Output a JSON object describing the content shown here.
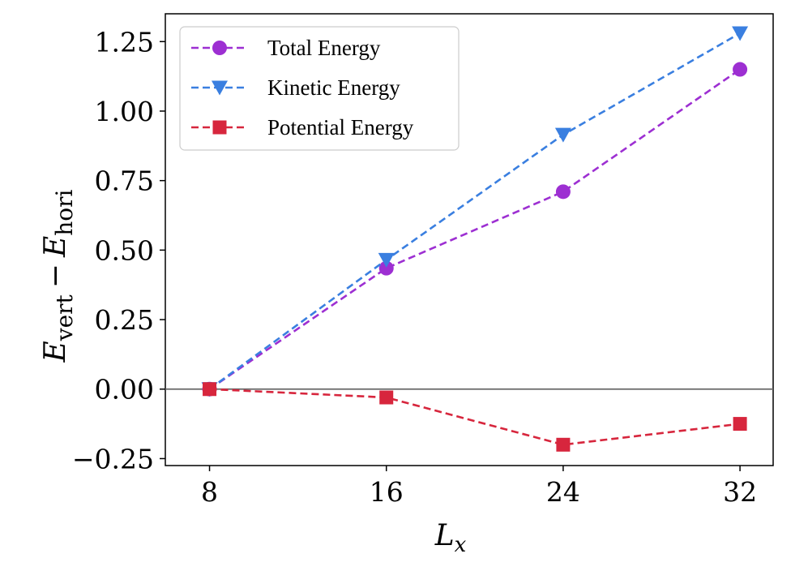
{
  "chart_data": {
    "type": "line",
    "title": "",
    "xlabel": {
      "base": "L",
      "sub": "x"
    },
    "ylabel": {
      "a_base": "E",
      "a_sub": "vert",
      "minus": "−",
      "b_base": "E",
      "b_sub": "hori"
    },
    "x": [
      8,
      16,
      24,
      32
    ],
    "xlim": [
      6,
      33.5
    ],
    "ylim": [
      -0.275,
      1.35
    ],
    "xticks": [
      8,
      16,
      24,
      32
    ],
    "xtick_labels": [
      "8",
      "16",
      "24",
      "32"
    ],
    "yticks": [
      -0.25,
      0,
      0.25,
      0.5,
      0.75,
      1.0,
      1.25
    ],
    "ytick_labels": [
      "−0.25",
      "0.00",
      "0.25",
      "0.50",
      "0.75",
      "1.00",
      "1.25"
    ],
    "hline": 0,
    "legend_position": "top-left",
    "series": [
      {
        "name": "Total Energy",
        "color": "#9d2fd2",
        "marker": "circle",
        "values": [
          0.0,
          0.435,
          0.71,
          1.15
        ]
      },
      {
        "name": "Kinetic Energy",
        "color": "#3a7fe0",
        "marker": "triangle-down",
        "values": [
          0.0,
          0.465,
          0.915,
          1.28
        ]
      },
      {
        "name": "Potential Energy",
        "color": "#d7263d",
        "marker": "square",
        "values": [
          0.0,
          -0.03,
          -0.2,
          -0.125
        ]
      }
    ]
  }
}
